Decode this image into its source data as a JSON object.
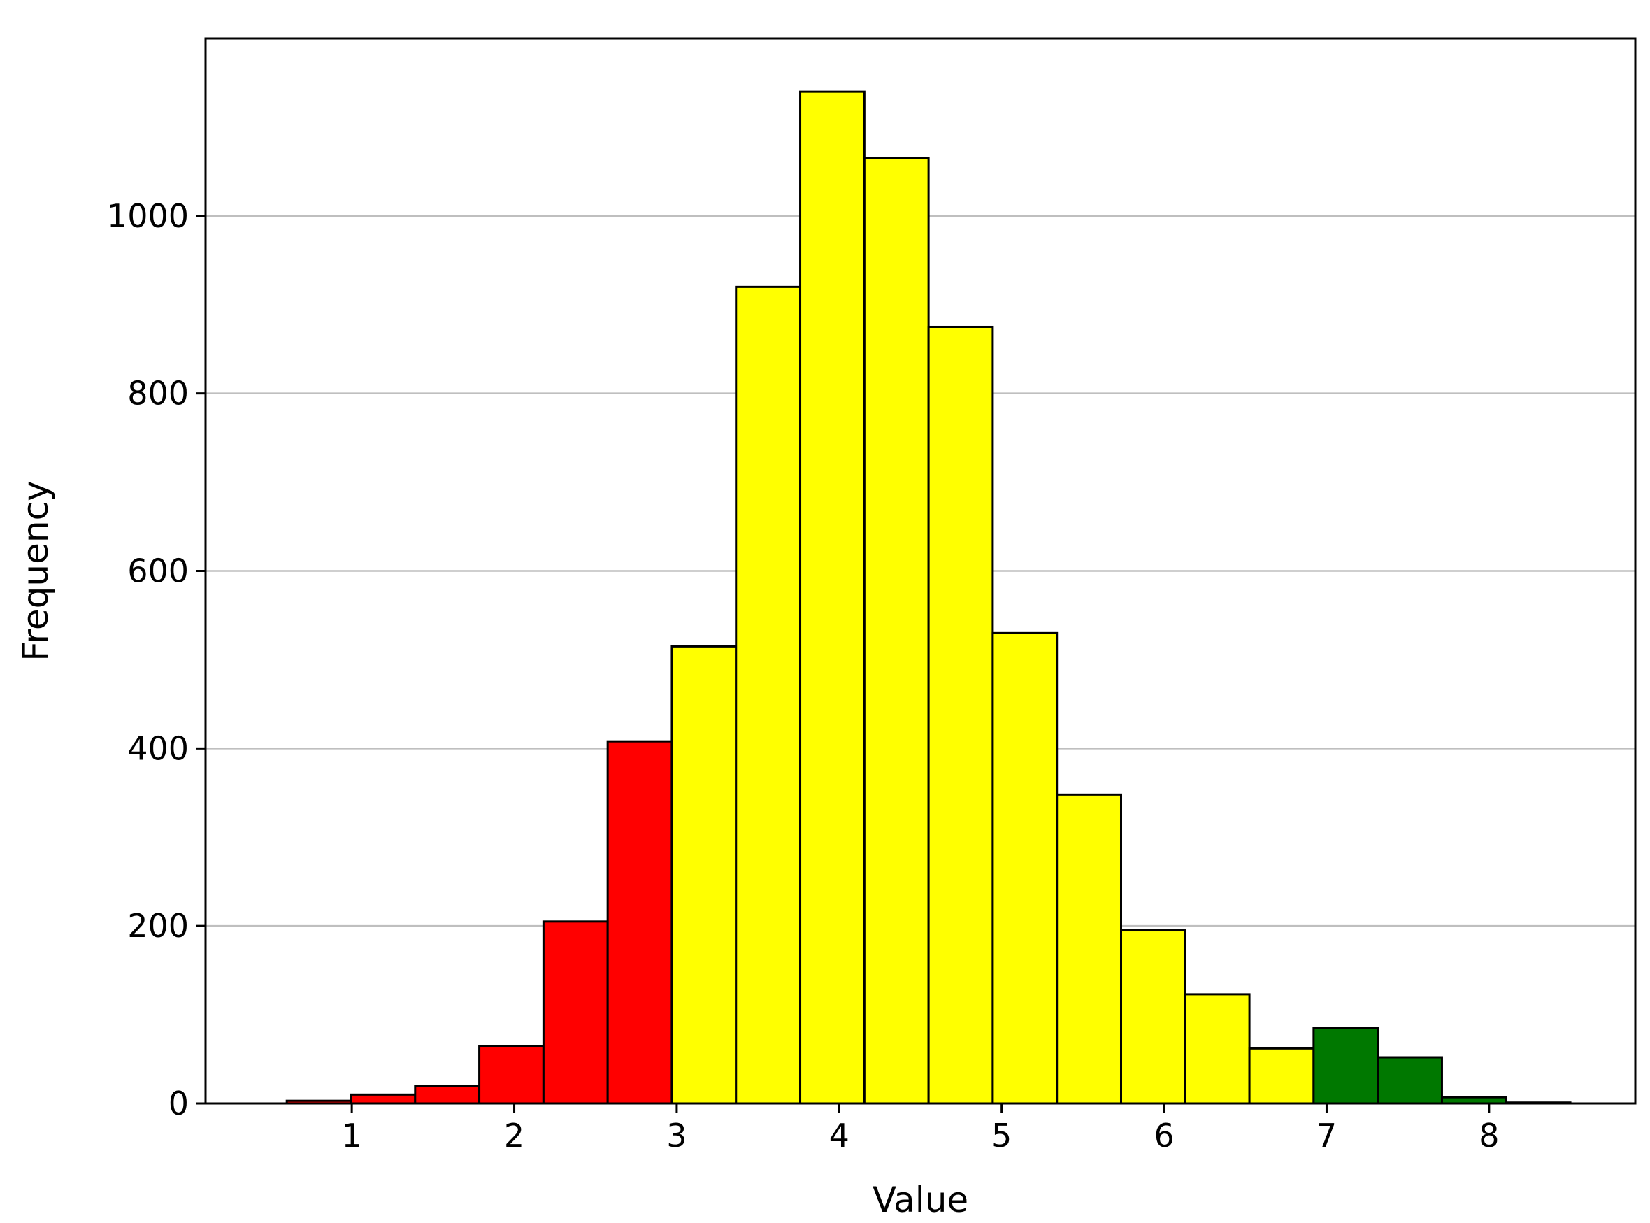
{
  "chart_data": {
    "type": "bar",
    "subtype": "histogram",
    "title": "",
    "xlabel": "Value",
    "ylabel": "Frequency",
    "xlim": [
      0.1,
      8.9
    ],
    "ylim": [
      0,
      1200
    ],
    "xticks": [
      1,
      2,
      3,
      4,
      5,
      6,
      7,
      8
    ],
    "yticks": [
      0,
      200,
      400,
      600,
      800,
      1000
    ],
    "grid": "y",
    "bin_width": 0.395,
    "bins": [
      {
        "start": 0.6,
        "end": 0.995,
        "value": 3,
        "color": "#ff0000"
      },
      {
        "start": 0.995,
        "end": 1.39,
        "value": 10,
        "color": "#ff0000"
      },
      {
        "start": 1.39,
        "end": 1.785,
        "value": 20,
        "color": "#ff0000"
      },
      {
        "start": 1.785,
        "end": 2.18,
        "value": 65,
        "color": "#ff0000"
      },
      {
        "start": 2.18,
        "end": 2.575,
        "value": 205,
        "color": "#ff0000"
      },
      {
        "start": 2.575,
        "end": 2.97,
        "value": 408,
        "color": "#ff0000"
      },
      {
        "start": 2.97,
        "end": 3.365,
        "value": 515,
        "color": "#ffff00"
      },
      {
        "start": 3.365,
        "end": 3.76,
        "value": 920,
        "color": "#ffff00"
      },
      {
        "start": 3.76,
        "end": 4.155,
        "value": 1140,
        "color": "#ffff00"
      },
      {
        "start": 4.155,
        "end": 4.55,
        "value": 1065,
        "color": "#ffff00"
      },
      {
        "start": 4.55,
        "end": 4.945,
        "value": 875,
        "color": "#ffff00"
      },
      {
        "start": 4.945,
        "end": 5.34,
        "value": 530,
        "color": "#ffff00"
      },
      {
        "start": 5.34,
        "end": 5.735,
        "value": 348,
        "color": "#ffff00"
      },
      {
        "start": 5.735,
        "end": 6.13,
        "value": 195,
        "color": "#ffff00"
      },
      {
        "start": 6.13,
        "end": 6.525,
        "value": 123,
        "color": "#ffff00"
      },
      {
        "start": 6.525,
        "end": 6.92,
        "value": 62,
        "color": "#ffff00"
      },
      {
        "start": 6.92,
        "end": 7.315,
        "value": 85,
        "color": "#007800"
      },
      {
        "start": 7.315,
        "end": 7.71,
        "value": 52,
        "color": "#007800"
      },
      {
        "start": 7.71,
        "end": 8.105,
        "value": 7,
        "color": "#007800"
      },
      {
        "start": 8.105,
        "end": 8.5,
        "value": 1,
        "color": "#007800"
      }
    ],
    "colors": {
      "low": "#ff0000",
      "mid": "#ffff00",
      "high": "#007800",
      "grid": "#bfbfbf",
      "edge": "#000000"
    }
  }
}
